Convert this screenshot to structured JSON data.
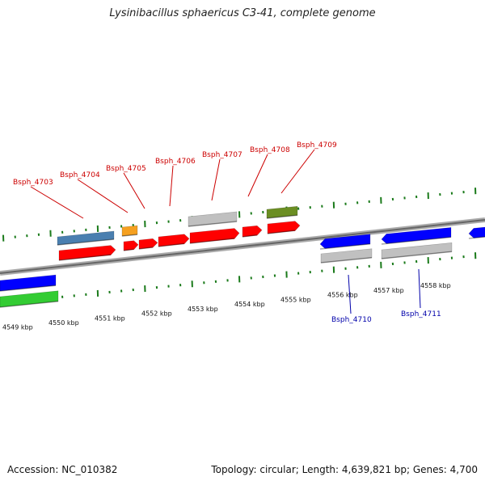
{
  "title": "Lysinibacillus sphaericus C3-41, complete genome",
  "footer": {
    "accession": "Accession: NC_010382",
    "summary": "Topology: circular; Length: 4,639,821 bp; Genes: 4,700"
  },
  "colors": {
    "forward_cds": "#ff0000",
    "reverse_cds": "#0000ff",
    "gene_other": "#c0c0c0",
    "steelblue": "#4a7fb0",
    "orange": "#f5a020",
    "olive": "#6b8e23",
    "green": "#33cc33",
    "backbone": "#888888",
    "tick": "#1a7a1a",
    "label_forward": "#cc0000",
    "label_reverse": "#0000aa"
  },
  "scale": {
    "kbp_labels": [
      "4549 kbp",
      "4550 kbp",
      "4551 kbp",
      "4552 kbp",
      "4553 kbp",
      "4554 kbp",
      "4555 kbp",
      "4556 kbp",
      "4557 kbp",
      "4558 kbp"
    ]
  },
  "gene_labels": {
    "forward": [
      "Bsph_4703",
      "Bsph_4704",
      "Bsph_4705",
      "Bsph_4706",
      "Bsph_4707",
      "Bsph_4708",
      "Bsph_4709"
    ],
    "reverse": [
      "Bsph_4710",
      "Bsph_4711"
    ]
  }
}
